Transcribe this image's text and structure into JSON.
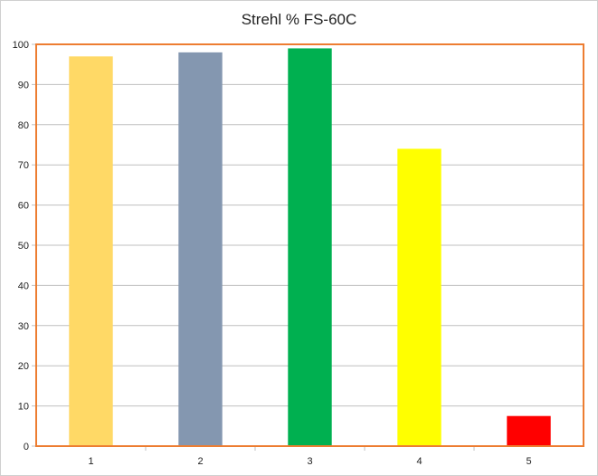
{
  "chart_data": {
    "type": "bar",
    "title": "Strehl % FS-60C",
    "categories": [
      "1",
      "2",
      "3",
      "4",
      "5"
    ],
    "values": [
      97,
      98,
      99,
      74,
      7.5
    ],
    "bar_colors": [
      "#FFD966",
      "#8497B0",
      "#00B050",
      "#FFFF00",
      "#FF0000"
    ],
    "xlabel": "",
    "ylabel": "",
    "ylim": [
      0,
      100
    ],
    "yticks": [
      0,
      10,
      20,
      30,
      40,
      50,
      60,
      70,
      80,
      90,
      100
    ],
    "grid": true,
    "legend": "none",
    "plot_border_color": "#ED7D31",
    "gridline_color": "#BFBFBF"
  }
}
